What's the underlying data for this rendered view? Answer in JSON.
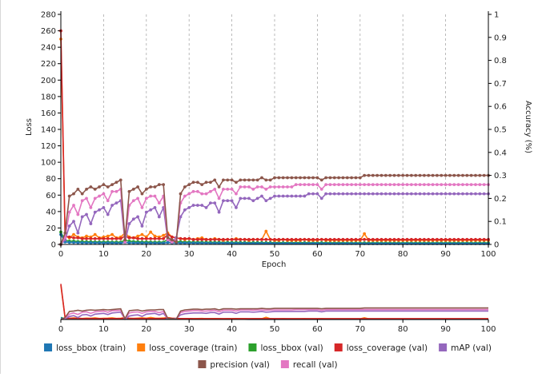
{
  "chart_data": {
    "type": "line",
    "xlabel": "Epoch",
    "ylabel_left": "Loss",
    "ylabel_right": "Accuracy (%)",
    "xlim": [
      0,
      100
    ],
    "ylim_left": [
      0,
      280
    ],
    "ylim_right": [
      0,
      1
    ],
    "x_ticks": [
      "0",
      "10",
      "20",
      "30",
      "40",
      "50",
      "60",
      "70",
      "80",
      "90",
      "100"
    ],
    "y_left_ticks": [
      "0",
      "20",
      "40",
      "60",
      "80",
      "100",
      "120",
      "140",
      "160",
      "180",
      "200",
      "220",
      "240",
      "260",
      "280"
    ],
    "y_right_ticks": [
      "0",
      "0.1",
      "0.2",
      "0.3",
      "0.4",
      "0.5",
      "0.6",
      "0.7",
      "0.8",
      "0.9",
      "1"
    ],
    "grid_vertical": true,
    "legend_position": "bottom",
    "x": [
      0,
      1,
      2,
      3,
      4,
      5,
      6,
      7,
      8,
      9,
      10,
      11,
      12,
      13,
      14,
      15,
      16,
      17,
      18,
      19,
      20,
      21,
      22,
      23,
      24,
      25,
      26,
      27,
      28,
      29,
      30,
      31,
      32,
      33,
      34,
      35,
      36,
      37,
      38,
      39,
      40,
      41,
      42,
      43,
      44,
      45,
      46,
      47,
      48,
      49,
      50,
      51,
      52,
      53,
      54,
      55,
      56,
      57,
      58,
      59,
      60,
      61,
      62,
      63,
      64,
      65,
      66,
      67,
      68,
      69,
      70,
      71,
      72,
      73,
      74,
      75,
      76,
      77,
      78,
      79,
      80,
      81,
      82,
      83,
      84,
      85,
      86,
      87,
      88,
      89,
      90,
      91,
      92,
      93,
      94,
      95,
      96,
      97,
      98,
      99,
      100
    ],
    "series": [
      {
        "name": "loss_bbox (train)",
        "axis": "left",
        "color": "#1f77b4",
        "values": [
          12,
          3,
          2.5,
          2.4,
          2.2,
          2.1,
          2.0,
          2.0,
          1.9,
          1.9,
          1.8,
          1.8,
          1.8,
          1.7,
          1.7,
          2.5,
          2.0,
          1.9,
          1.8,
          1.8,
          1.7,
          1.7,
          1.7,
          1.6,
          1.6,
          2.4,
          2.0,
          1.9,
          1.8,
          1.8,
          1.7,
          1.7,
          1.6,
          1.6,
          1.6,
          1.5,
          1.5,
          1.5,
          1.5,
          1.4,
          1.4,
          1.4,
          1.4,
          1.4,
          1.3,
          1.3,
          1.3,
          1.3,
          1.3,
          1.3,
          1.3,
          1.2,
          1.2,
          1.2,
          1.2,
          1.2,
          1.2,
          1.2,
          1.2,
          1.2,
          1.1,
          1.1,
          1.1,
          1.1,
          1.1,
          1.1,
          1.1,
          1.1,
          1.1,
          1.1,
          1.1,
          1.0,
          1.0,
          1.0,
          1.0,
          1.0,
          1.0,
          1.0,
          1.0,
          1.0,
          1.0,
          1.0,
          1.0,
          1.0,
          1.0,
          1.0,
          1.0,
          1.0,
          1.0,
          1.0,
          1.0,
          1.0,
          1.0,
          1.0,
          1.0,
          1.0,
          1.0,
          1.0,
          1.0,
          1.0,
          1.0
        ]
      },
      {
        "name": "loss_coverage (train)",
        "axis": "left",
        "color": "#ff7f0e",
        "values": [
          250,
          10,
          8,
          12,
          9,
          8,
          10,
          9,
          12,
          8,
          9,
          10,
          12,
          8,
          9,
          14,
          9,
          8,
          10,
          12,
          9,
          15,
          10,
          9,
          11,
          14,
          9,
          8,
          7,
          6,
          7,
          6,
          7,
          8,
          6,
          6,
          7,
          6,
          5,
          6,
          6,
          7,
          6,
          6,
          5,
          6,
          6,
          6,
          16,
          6,
          5,
          5,
          6,
          5,
          5,
          5,
          5,
          6,
          5,
          5,
          5,
          6,
          5,
          5,
          5,
          5,
          5,
          5,
          5,
          5,
          5,
          13,
          5,
          5,
          5,
          5,
          5,
          5,
          5,
          5,
          5,
          5,
          5,
          5,
          5,
          5,
          5,
          5,
          5,
          5,
          5,
          5,
          5,
          5,
          5,
          5,
          5,
          5,
          5,
          5,
          5
        ]
      },
      {
        "name": "loss_bbox (val)",
        "axis": "left",
        "color": "#2ca02c",
        "values": [
          15,
          5,
          4,
          4,
          3.5,
          3.5,
          3.2,
          3.2,
          3,
          3,
          3,
          3,
          2.9,
          2.9,
          2.8,
          5,
          4,
          3.5,
          3.2,
          3,
          3,
          2.9,
          2.8,
          2.8,
          2.7,
          6,
          4,
          3.5,
          3.2,
          3,
          2.9,
          2.8,
          2.7,
          2.7,
          2.6,
          2.6,
          2.5,
          2.5,
          2.5,
          2.4,
          2.4,
          2.4,
          2.4,
          2.3,
          2.3,
          2.3,
          2.3,
          2.2,
          2.2,
          2.2,
          2.2,
          2.2,
          2.1,
          2.1,
          2.1,
          2.1,
          2.1,
          2.1,
          2.0,
          2.0,
          2.0,
          2.0,
          2.0,
          2.0,
          2.0,
          2.0,
          2.0,
          1.9,
          1.9,
          1.9,
          1.9,
          1.9,
          1.9,
          1.9,
          1.9,
          1.9,
          1.9,
          1.9,
          1.9,
          1.9,
          1.9,
          1.9,
          1.9,
          1.9,
          1.9,
          1.9,
          1.9,
          1.9,
          1.9,
          1.9,
          1.9,
          1.9,
          1.9,
          1.9,
          1.9,
          1.9,
          1.9,
          1.9,
          1.9,
          1.9,
          1.9
        ]
      },
      {
        "name": "loss_coverage (val)",
        "axis": "left",
        "color": "#d62728",
        "values": [
          260,
          10,
          9,
          8,
          8,
          7,
          7,
          7,
          7,
          7,
          7,
          7,
          7,
          7,
          7,
          10,
          8,
          8,
          7,
          7,
          7,
          7,
          7,
          7,
          7,
          12,
          9,
          8,
          7,
          7,
          7,
          6,
          6,
          6,
          6,
          6,
          6,
          6,
          6,
          6,
          6,
          6,
          6,
          6,
          6,
          6,
          6,
          6,
          6,
          6,
          6,
          6,
          6,
          6,
          6,
          6,
          6,
          6,
          6,
          6,
          6,
          6,
          6,
          6,
          6,
          6,
          6,
          6,
          6,
          6,
          6,
          6,
          6,
          6,
          6,
          6,
          6,
          6,
          6,
          6,
          6,
          6,
          6,
          6,
          6,
          6,
          6,
          6,
          6,
          6,
          6,
          6,
          6,
          6,
          6,
          6,
          6,
          6,
          6,
          6,
          6
        ]
      },
      {
        "name": "mAP (val)",
        "axis": "right",
        "color": "#9467bd",
        "values": [
          0,
          0.02,
          0.08,
          0.1,
          0.05,
          0.12,
          0.13,
          0.09,
          0.14,
          0.15,
          0.16,
          0.13,
          0.17,
          0.18,
          0.19,
          0.01,
          0.09,
          0.11,
          0.12,
          0.08,
          0.14,
          0.15,
          0.16,
          0.12,
          0.16,
          0.02,
          0.01,
          0.03,
          0.12,
          0.15,
          0.16,
          0.17,
          0.17,
          0.17,
          0.16,
          0.18,
          0.18,
          0.14,
          0.19,
          0.19,
          0.19,
          0.16,
          0.2,
          0.2,
          0.2,
          0.19,
          0.2,
          0.21,
          0.19,
          0.2,
          0.21,
          0.21,
          0.21,
          0.21,
          0.21,
          0.21,
          0.21,
          0.21,
          0.22,
          0.22,
          0.22,
          0.2,
          0.22,
          0.22,
          0.22,
          0.22,
          0.22,
          0.22,
          0.22,
          0.22,
          0.22,
          0.22,
          0.22,
          0.22,
          0.22,
          0.22,
          0.22,
          0.22,
          0.22,
          0.22,
          0.22,
          0.22,
          0.22,
          0.22,
          0.22,
          0.22,
          0.22,
          0.22,
          0.22,
          0.22,
          0.22,
          0.22,
          0.22,
          0.22,
          0.22,
          0.22,
          0.22,
          0.22,
          0.22,
          0.22,
          0.22
        ]
      },
      {
        "name": "precision (val)",
        "axis": "right",
        "color": "#8c564b",
        "values": [
          0,
          0.05,
          0.21,
          0.22,
          0.24,
          0.22,
          0.24,
          0.25,
          0.24,
          0.25,
          0.26,
          0.25,
          0.26,
          0.27,
          0.28,
          0.02,
          0.23,
          0.24,
          0.25,
          0.22,
          0.24,
          0.25,
          0.25,
          0.26,
          0.26,
          0.03,
          0.02,
          0.01,
          0.22,
          0.25,
          0.26,
          0.27,
          0.27,
          0.26,
          0.27,
          0.27,
          0.28,
          0.25,
          0.28,
          0.28,
          0.28,
          0.27,
          0.28,
          0.28,
          0.28,
          0.28,
          0.28,
          0.29,
          0.28,
          0.28,
          0.29,
          0.29,
          0.29,
          0.29,
          0.29,
          0.29,
          0.29,
          0.29,
          0.29,
          0.29,
          0.29,
          0.28,
          0.29,
          0.29,
          0.29,
          0.29,
          0.29,
          0.29,
          0.29,
          0.29,
          0.29,
          0.3,
          0.3,
          0.3,
          0.3,
          0.3,
          0.3,
          0.3,
          0.3,
          0.3,
          0.3,
          0.3,
          0.3,
          0.3,
          0.3,
          0.3,
          0.3,
          0.3,
          0.3,
          0.3,
          0.3,
          0.3,
          0.3,
          0.3,
          0.3,
          0.3,
          0.3,
          0.3,
          0.3,
          0.3,
          0.3
        ]
      },
      {
        "name": "recall (val)",
        "axis": "right",
        "color": "#e377c2",
        "values": [
          0,
          0.03,
          0.14,
          0.17,
          0.13,
          0.19,
          0.2,
          0.16,
          0.2,
          0.21,
          0.22,
          0.19,
          0.23,
          0.23,
          0.24,
          0.01,
          0.17,
          0.19,
          0.2,
          0.16,
          0.2,
          0.21,
          0.21,
          0.18,
          0.21,
          0.02,
          0.01,
          0.02,
          0.18,
          0.21,
          0.22,
          0.23,
          0.23,
          0.22,
          0.22,
          0.23,
          0.24,
          0.2,
          0.24,
          0.24,
          0.24,
          0.22,
          0.25,
          0.25,
          0.25,
          0.24,
          0.25,
          0.25,
          0.24,
          0.25,
          0.25,
          0.25,
          0.25,
          0.25,
          0.25,
          0.26,
          0.26,
          0.26,
          0.26,
          0.26,
          0.26,
          0.24,
          0.26,
          0.26,
          0.26,
          0.26,
          0.26,
          0.26,
          0.26,
          0.26,
          0.26,
          0.26,
          0.26,
          0.26,
          0.26,
          0.26,
          0.26,
          0.26,
          0.26,
          0.26,
          0.26,
          0.26,
          0.26,
          0.26,
          0.26,
          0.26,
          0.26,
          0.26,
          0.26,
          0.26,
          0.26,
          0.26,
          0.26,
          0.26,
          0.26,
          0.26,
          0.26,
          0.26,
          0.26,
          0.26,
          0.26
        ]
      }
    ],
    "overview": {
      "x_ticks": [
        "0",
        "10",
        "20",
        "30",
        "40",
        "50",
        "60",
        "70",
        "80",
        "90",
        "100"
      ]
    },
    "legend": [
      {
        "label": "loss_bbox (train)",
        "color": "#1f77b4"
      },
      {
        "label": "loss_coverage (train)",
        "color": "#ff7f0e"
      },
      {
        "label": "loss_bbox (val)",
        "color": "#2ca02c"
      },
      {
        "label": "loss_coverage (val)",
        "color": "#d62728"
      },
      {
        "label": "mAP (val)",
        "color": "#9467bd"
      },
      {
        "label": "precision (val)",
        "color": "#8c564b"
      },
      {
        "label": "recall (val)",
        "color": "#e377c2"
      }
    ]
  }
}
